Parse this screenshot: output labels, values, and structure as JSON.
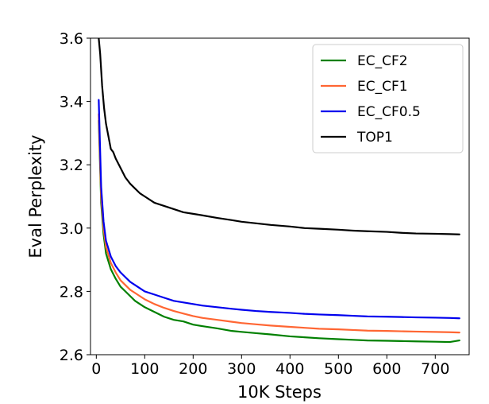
{
  "chart_data": {
    "type": "line",
    "title": "",
    "xlabel": "10K Steps",
    "ylabel": "Eval Perplexity",
    "xlim": [
      -12,
      770
    ],
    "ylim": [
      2.6,
      3.6
    ],
    "x_ticks": [
      0,
      100,
      200,
      300,
      400,
      500,
      600,
      700
    ],
    "y_ticks": [
      2.6,
      2.8,
      3.0,
      3.2,
      3.4,
      3.6
    ],
    "x_tick_labels": [
      "0",
      "100",
      "200",
      "300",
      "400",
      "500",
      "600",
      "700"
    ],
    "y_tick_labels": [
      "2.6",
      "2.8",
      "3.0",
      "3.2",
      "3.4",
      "3.6"
    ],
    "grid": false,
    "legend_position": "top-right",
    "series": [
      {
        "name": "EC_CF2",
        "color": "#008000",
        "points": [
          [
            5,
            3.34
          ],
          [
            10,
            3.08
          ],
          [
            15,
            2.98
          ],
          [
            20,
            2.92
          ],
          [
            30,
            2.87
          ],
          [
            40,
            2.84
          ],
          [
            50,
            2.815
          ],
          [
            60,
            2.8
          ],
          [
            70,
            2.785
          ],
          [
            80,
            2.77
          ],
          [
            90,
            2.76
          ],
          [
            100,
            2.75
          ],
          [
            120,
            2.735
          ],
          [
            140,
            2.72
          ],
          [
            160,
            2.71
          ],
          [
            180,
            2.705
          ],
          [
            200,
            2.695
          ],
          [
            220,
            2.69
          ],
          [
            250,
            2.683
          ],
          [
            280,
            2.675
          ],
          [
            300,
            2.672
          ],
          [
            330,
            2.668
          ],
          [
            360,
            2.664
          ],
          [
            400,
            2.658
          ],
          [
            430,
            2.655
          ],
          [
            460,
            2.652
          ],
          [
            500,
            2.649
          ],
          [
            530,
            2.647
          ],
          [
            560,
            2.645
          ],
          [
            600,
            2.644
          ],
          [
            630,
            2.643
          ],
          [
            660,
            2.642
          ],
          [
            700,
            2.641
          ],
          [
            730,
            2.64
          ],
          [
            750,
            2.645
          ]
        ]
      },
      {
        "name": "EC_CF1",
        "color": "#ff6633",
        "points": [
          [
            5,
            3.36
          ],
          [
            10,
            3.1
          ],
          [
            15,
            3.0
          ],
          [
            20,
            2.94
          ],
          [
            30,
            2.89
          ],
          [
            40,
            2.86
          ],
          [
            50,
            2.835
          ],
          [
            60,
            2.82
          ],
          [
            70,
            2.805
          ],
          [
            80,
            2.795
          ],
          [
            90,
            2.785
          ],
          [
            100,
            2.775
          ],
          [
            120,
            2.76
          ],
          [
            140,
            2.748
          ],
          [
            160,
            2.738
          ],
          [
            180,
            2.73
          ],
          [
            200,
            2.722
          ],
          [
            220,
            2.716
          ],
          [
            250,
            2.71
          ],
          [
            280,
            2.704
          ],
          [
            300,
            2.7
          ],
          [
            330,
            2.696
          ],
          [
            360,
            2.692
          ],
          [
            400,
            2.688
          ],
          [
            430,
            2.685
          ],
          [
            460,
            2.682
          ],
          [
            500,
            2.68
          ],
          [
            530,
            2.678
          ],
          [
            560,
            2.676
          ],
          [
            600,
            2.675
          ],
          [
            630,
            2.674
          ],
          [
            660,
            2.673
          ],
          [
            700,
            2.672
          ],
          [
            730,
            2.671
          ],
          [
            750,
            2.67
          ]
        ]
      },
      {
        "name": "EC_CF0.5",
        "color": "#0000ee",
        "points": [
          [
            5,
            3.405
          ],
          [
            10,
            3.13
          ],
          [
            15,
            3.02
          ],
          [
            20,
            2.96
          ],
          [
            30,
            2.91
          ],
          [
            40,
            2.88
          ],
          [
            50,
            2.86
          ],
          [
            60,
            2.845
          ],
          [
            70,
            2.83
          ],
          [
            80,
            2.82
          ],
          [
            90,
            2.81
          ],
          [
            100,
            2.8
          ],
          [
            120,
            2.79
          ],
          [
            140,
            2.78
          ],
          [
            160,
            2.77
          ],
          [
            180,
            2.765
          ],
          [
            200,
            2.76
          ],
          [
            220,
            2.755
          ],
          [
            250,
            2.75
          ],
          [
            280,
            2.745
          ],
          [
            300,
            2.742
          ],
          [
            330,
            2.738
          ],
          [
            360,
            2.735
          ],
          [
            400,
            2.732
          ],
          [
            430,
            2.729
          ],
          [
            460,
            2.727
          ],
          [
            500,
            2.725
          ],
          [
            530,
            2.723
          ],
          [
            560,
            2.721
          ],
          [
            600,
            2.72
          ],
          [
            630,
            2.719
          ],
          [
            660,
            2.718
          ],
          [
            700,
            2.717
          ],
          [
            730,
            2.716
          ],
          [
            750,
            2.715
          ]
        ]
      },
      {
        "name": "TOP1",
        "color": "#000000",
        "points": [
          [
            5,
            3.6
          ],
          [
            8,
            3.55
          ],
          [
            12,
            3.45
          ],
          [
            16,
            3.38
          ],
          [
            20,
            3.33
          ],
          [
            25,
            3.29
          ],
          [
            30,
            3.25
          ],
          [
            35,
            3.24
          ],
          [
            40,
            3.22
          ],
          [
            50,
            3.19
          ],
          [
            60,
            3.16
          ],
          [
            70,
            3.14
          ],
          [
            80,
            3.125
          ],
          [
            90,
            3.11
          ],
          [
            100,
            3.1
          ],
          [
            120,
            3.08
          ],
          [
            140,
            3.07
          ],
          [
            160,
            3.06
          ],
          [
            180,
            3.05
          ],
          [
            200,
            3.045
          ],
          [
            220,
            3.04
          ],
          [
            250,
            3.032
          ],
          [
            280,
            3.025
          ],
          [
            300,
            3.02
          ],
          [
            330,
            3.015
          ],
          [
            360,
            3.01
          ],
          [
            400,
            3.005
          ],
          [
            430,
            3.0
          ],
          [
            460,
            2.998
          ],
          [
            500,
            2.995
          ],
          [
            530,
            2.992
          ],
          [
            560,
            2.99
          ],
          [
            600,
            2.988
          ],
          [
            630,
            2.985
          ],
          [
            660,
            2.983
          ],
          [
            700,
            2.982
          ],
          [
            730,
            2.981
          ],
          [
            750,
            2.98
          ]
        ]
      }
    ]
  }
}
